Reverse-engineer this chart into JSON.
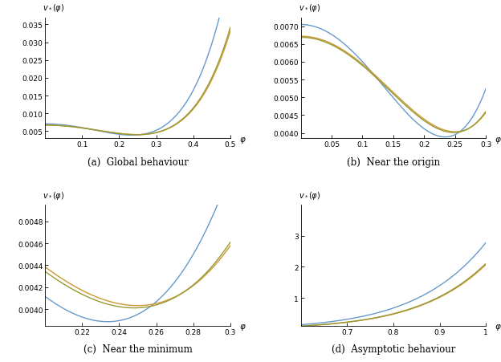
{
  "colors": {
    "blue": "#6699CC",
    "yellow": "#CC9933",
    "green": "#999933"
  },
  "subplot_titles": [
    "(a)  Global behaviour",
    "(b)  Near the origin",
    "(c)  Near the minimum",
    "(d)  Asymptotic behaviour"
  ],
  "subplot_a": {
    "xlim": [
      0,
      0.5
    ],
    "ylim": [
      0.003,
      0.037
    ],
    "xticks": [
      0.1,
      0.2,
      0.3,
      0.4,
      0.5
    ],
    "yticks": [
      0.005,
      0.01,
      0.015,
      0.02,
      0.025,
      0.03,
      0.035
    ],
    "ytick_labels": [
      "0.005",
      "0.010",
      "0.015",
      "0.020",
      "0.025",
      "0.030",
      "0.035"
    ]
  },
  "subplot_b": {
    "xlim": [
      0,
      0.3
    ],
    "ylim": [
      0.00385,
      0.00725
    ],
    "xticks": [
      0.05,
      0.1,
      0.15,
      0.2,
      0.25,
      0.3
    ],
    "yticks": [
      0.004,
      0.0045,
      0.005,
      0.0055,
      0.006,
      0.0065,
      0.007
    ],
    "ytick_labels": [
      "0.0040",
      "0.0045",
      "0.0050",
      "0.0055",
      "0.0060",
      "0.0065",
      "0.0070"
    ]
  },
  "subplot_c": {
    "xlim": [
      0.2,
      0.3
    ],
    "ylim": [
      0.00385,
      0.00495
    ],
    "xticks": [
      0.22,
      0.24,
      0.26,
      0.28,
      0.3
    ],
    "yticks": [
      0.004,
      0.0042,
      0.0044,
      0.0046,
      0.0048
    ],
    "ytick_labels": [
      "0.0040",
      "0.0042",
      "0.0044",
      "0.0046",
      "0.0048"
    ]
  },
  "subplot_d": {
    "xlim": [
      0.6,
      1.0
    ],
    "ylim": [
      0.1,
      4.0
    ],
    "xticks": [
      0.7,
      0.8,
      0.9,
      1.0
    ],
    "yticks": [
      1.0,
      2.0,
      3.0
    ],
    "ytick_labels": [
      "1",
      "2",
      "3"
    ]
  },
  "blue_params": {
    "v0": 0.00705,
    "phi_min": 0.235,
    "v_min": 0.00387,
    "grow": 1.85
  },
  "yellow_params": {
    "v0": 0.00672,
    "phi_min": 0.252,
    "v_min": 0.00401,
    "grow": 1.48
  },
  "green_params": {
    "v0": 0.00669,
    "phi_min": 0.25,
    "v_min": 0.00399,
    "grow": 1.5
  }
}
